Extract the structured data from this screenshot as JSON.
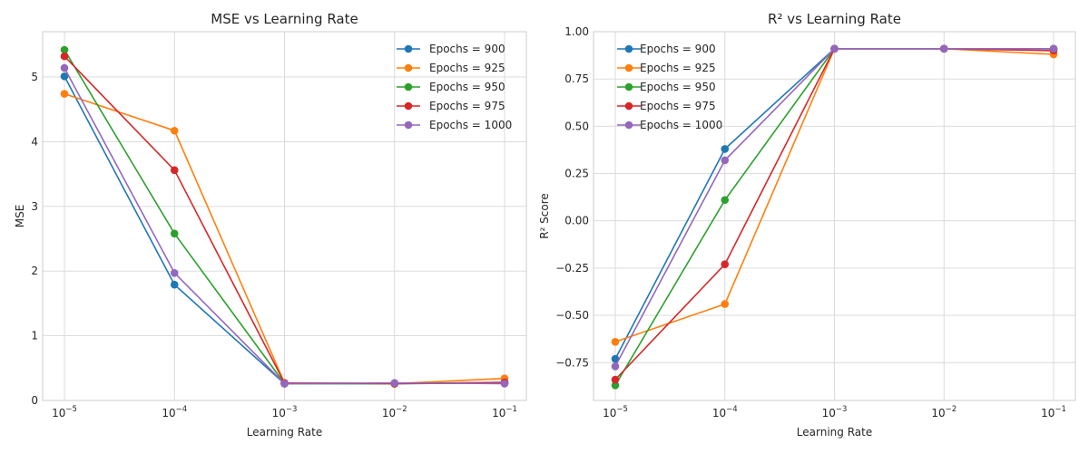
{
  "colors": {
    "Epochs = 900": "#1f77b4",
    "Epochs = 925": "#ff7f0e",
    "Epochs = 950": "#2ca02c",
    "Epochs = 975": "#d62728",
    "Epochs = 1000": "#9467bd"
  },
  "chart_data": [
    {
      "type": "line",
      "title": "MSE vs Learning Rate",
      "xlabel": "Learning Rate",
      "ylabel": "MSE",
      "x_scale": "log",
      "x": [
        1e-05,
        0.0001,
        0.001,
        0.01,
        0.1
      ],
      "x_tick_labels": [
        {
          "base": "10",
          "exp": "−5"
        },
        {
          "base": "10",
          "exp": "−4"
        },
        {
          "base": "10",
          "exp": "−3"
        },
        {
          "base": "10",
          "exp": "−2"
        },
        {
          "base": "10",
          "exp": "−1"
        }
      ],
      "ylim": [
        0,
        5.7
      ],
      "y_ticks": [
        0,
        1,
        2,
        3,
        4,
        5
      ],
      "y_tick_labels": [
        "0",
        "1",
        "2",
        "3",
        "4",
        "5"
      ],
      "grid": true,
      "legend": "top-right",
      "series": [
        {
          "name": "Epochs = 900",
          "values": [
            5.01,
            1.79,
            0.26,
            0.26,
            0.27
          ]
        },
        {
          "name": "Epochs = 925",
          "values": [
            4.74,
            4.17,
            0.27,
            0.26,
            0.34
          ]
        },
        {
          "name": "Epochs = 950",
          "values": [
            5.42,
            2.58,
            0.26,
            0.26,
            0.27
          ]
        },
        {
          "name": "Epochs = 975",
          "values": [
            5.32,
            3.56,
            0.27,
            0.26,
            0.28
          ]
        },
        {
          "name": "Epochs = 1000",
          "values": [
            5.14,
            1.97,
            0.26,
            0.27,
            0.26
          ]
        }
      ]
    },
    {
      "type": "line",
      "title": "R² vs Learning Rate",
      "xlabel": "Learning Rate",
      "ylabel": "R² Score",
      "x_scale": "log",
      "x": [
        1e-05,
        0.0001,
        0.001,
        0.01,
        0.1
      ],
      "x_tick_labels": [
        {
          "base": "10",
          "exp": "−5"
        },
        {
          "base": "10",
          "exp": "−4"
        },
        {
          "base": "10",
          "exp": "−3"
        },
        {
          "base": "10",
          "exp": "−2"
        },
        {
          "base": "10",
          "exp": "−1"
        }
      ],
      "ylim": [
        -0.95,
        1.0
      ],
      "y_ticks": [
        -0.75,
        -0.5,
        -0.25,
        0,
        0.25,
        0.5,
        0.75,
        1.0
      ],
      "y_tick_labels": [
        "−0.75",
        "−0.50",
        "−0.25",
        "0.00",
        "0.25",
        "0.50",
        "0.75",
        "1.00"
      ],
      "grid": true,
      "legend": "top-left",
      "series": [
        {
          "name": "Epochs = 900",
          "values": [
            -0.73,
            0.38,
            0.91,
            0.91,
            0.91
          ]
        },
        {
          "name": "Epochs = 925",
          "values": [
            -0.64,
            -0.44,
            0.91,
            0.91,
            0.88
          ]
        },
        {
          "name": "Epochs = 950",
          "values": [
            -0.87,
            0.11,
            0.91,
            0.91,
            0.91
          ]
        },
        {
          "name": "Epochs = 975",
          "values": [
            -0.84,
            -0.23,
            0.91,
            0.91,
            0.9
          ]
        },
        {
          "name": "Epochs = 1000",
          "values": [
            -0.77,
            0.32,
            0.91,
            0.91,
            0.91
          ]
        }
      ]
    }
  ]
}
